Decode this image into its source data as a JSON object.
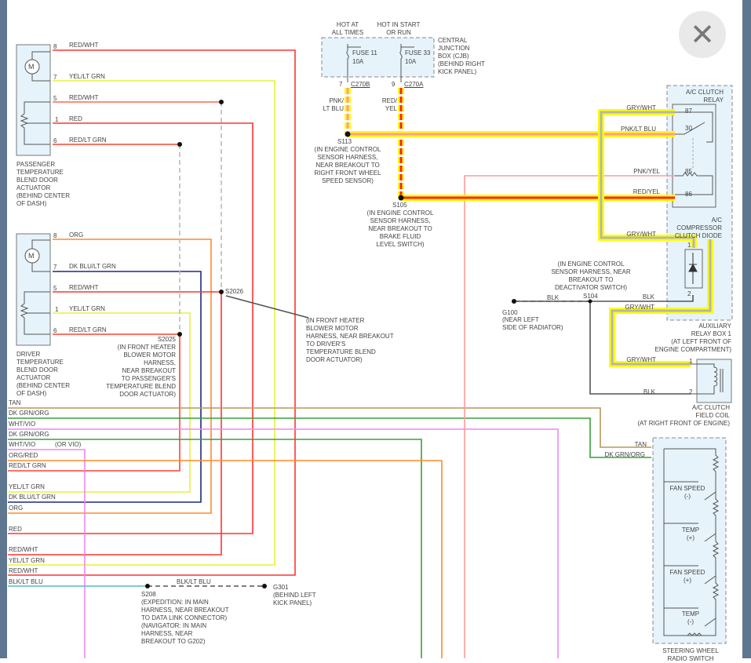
{
  "close_button": {
    "icon": "close-icon",
    "glyph": "✕"
  },
  "passenger_actuator": {
    "label": "PASSENGER\nTEMPERATURE\nBLEND DOOR\nACTUATOR\n(BEHIND CENTER\nOF DASH)",
    "pins": [
      {
        "pin": "8",
        "wire": "RED/WHT"
      },
      {
        "pin": "7",
        "wire": "YEL/LT GRN"
      },
      {
        "pin": "5",
        "wire": "RED/WHT"
      },
      {
        "pin": "1",
        "wire": "RED"
      },
      {
        "pin": "6",
        "wire": "RED/LT GRN"
      }
    ]
  },
  "driver_actuator": {
    "label": "DRIVER\nTEMPERATURE\nBLEND DOOR\nACTUATOR\n(BEHIND CENTER\nOF DASH)",
    "pins": [
      {
        "pin": "8",
        "wire": "ORG"
      },
      {
        "pin": "7",
        "wire": "DK BLU/LT GRN"
      },
      {
        "pin": "5",
        "wire": "RED/WHT"
      },
      {
        "pin": "1",
        "wire": "YEL/LT GRN"
      },
      {
        "pin": "6",
        "wire": "RED/LT GRN"
      }
    ]
  },
  "motor_symbol": "M",
  "splices": {
    "s2026": {
      "id": "S2026",
      "note": "(IN FRONT HEATER\nBLOWER MOTOR\nHARNESS, NEAR BREAKOUT\nTO DRIVER'S\nTEMPERATURE BLEND\nDOOR ACTUATOR)"
    },
    "s2025": {
      "id": "S2025",
      "note": "(IN FRONT HEATER\nBLOWER MOTOR\nHARNESS,\nNEAR BREAKOUT\nTO PASSENGER'S\nTEMPERATURE BLEND\nDOOR ACTUATOR)"
    },
    "s113": {
      "id": "S113",
      "note": "(IN ENGINE CONTROL\nSENSOR HARNESS,\nNEAR BREAKOUT TO\nRIGHT FRONT WHEEL\nSPEED SENSOR)"
    },
    "s105": {
      "id": "S105",
      "note": "(IN ENGINE CONTROL\nSENSOR HARNESS,\nNEAR BREAKOUT TO\nBRAKE FLUID\nLEVEL SWITCH)"
    },
    "s104": {
      "id": "S104",
      "note": "(IN ENGINE CONTROL\nSENSOR HARNESS, NEAR\nBREAKOUT TO\nDEACTIVATOR SWITCH)"
    },
    "s208": {
      "id": "S208",
      "note": "(EXPEDITION: IN MAIN\nHARNESS, NEAR BREAKOUT\nTO DATA LINK CONNECTOR)\n(NAVIGATOR: IN MAIN\nHARNESS, NEAR\nBREAKOUT TO G202)"
    }
  },
  "grounds": {
    "g100": {
      "id": "G100",
      "note": "(NEAR LEFT\nSIDE OF RADIATOR)"
    },
    "g301": {
      "id": "G301",
      "note": "(BEHIND LEFT\nKICK PANEL)"
    }
  },
  "cjb": {
    "label": "CENTRAL\nJUNCTION\nBOX (CJB)\n(BEHIND RIGHT\nKICK PANEL)",
    "hot_at_all_times": "HOT AT\nALL TIMES",
    "hot_in_start_or_run": "HOT IN START\nOR RUN",
    "fuse11": {
      "name": "FUSE 11",
      "rating": "10A",
      "connector_pin": "7",
      "connector": "C270B",
      "wire": "PNK/\nLT BLU"
    },
    "fuse33": {
      "name": "FUSE 33",
      "rating": "10A",
      "connector_pin": "9",
      "connector": "C270A",
      "wire": "RED/\nYEL"
    }
  },
  "relay": {
    "label": "A/C CLUTCH\nRELAY",
    "pins": [
      {
        "pin": "87",
        "wire": "GRY/WHT"
      },
      {
        "pin": "30",
        "wire": "PNK/LT BLU"
      },
      {
        "pin": "85",
        "wire": "PNK/YEL"
      },
      {
        "pin": "86",
        "wire": "RED/YEL"
      }
    ]
  },
  "diode": {
    "label": "A/C\nCOMPRESSOR\nCLUTCH DIODE",
    "pin1": "1",
    "pin2": "2",
    "wire_in": "GRY/WHT",
    "wire_out": "GRY/WHT",
    "wire_blk": "BLK"
  },
  "aux_relay_box": "AUXILIARY\nRELAY BOX 1\n(AT LEFT FRONT OF\nENGINE COMPARTMENT)",
  "ground_wire": "BLK",
  "field_coil": {
    "label": "A/C CLUTCH\nFIELD COIL\n(AT RIGHT FRONT OF ENGINE)",
    "pin1": "1",
    "pin2": "2",
    "wire1": "GRY/WHT",
    "wire2": "BLK"
  },
  "left_bus": [
    {
      "wire": "TAN",
      "color": "#b39a5a"
    },
    {
      "wire": "DK GRN/ORG",
      "color": "#3aa03a"
    },
    {
      "wire": "WHT/VIO",
      "color": "#ee88ee"
    },
    {
      "wire": "DK GRN/ORG",
      "color": "#3aa03a"
    },
    {
      "wire": "WHT/VIO",
      "color": "#ee88ee",
      "note": "(OR VIO)"
    },
    {
      "wire": "ORG/RED",
      "color": "#ff8a2a"
    },
    {
      "wire": "RED/LT GRN",
      "color": "#ff3333"
    },
    {
      "wire": "YEL/LT GRN",
      "color": "#eef23a"
    },
    {
      "wire": "DK BLU/LT GRN",
      "color": "#1a2a80"
    },
    {
      "wire": "ORG",
      "color": "#ff8a2a"
    },
    {
      "wire": "RED",
      "color": "#ff3333"
    },
    {
      "wire": "RED/WHT",
      "color": "#ff3333"
    },
    {
      "wire": "YEL/LT GRN",
      "color": "#eef23a"
    },
    {
      "wire": "RED/WHT",
      "color": "#ff3333"
    },
    {
      "wire": "BLK/LT BLU",
      "color": "#55bbbb"
    }
  ],
  "blk_lt_blu_dashed": "BLK/LT BLU",
  "steering_switch": {
    "label": "STEERING WHEEL\nRADIO SWITCH",
    "wire_tan": "TAN",
    "wire_dkgrn": "DK GRN/ORG",
    "switches": [
      {
        "name": "FAN SPEED",
        "sign": "(-)"
      },
      {
        "name": "TEMP",
        "sign": "(+)"
      },
      {
        "name": "FAN SPEED",
        "sign": "(+)"
      },
      {
        "name": "TEMP",
        "sign": "(-)"
      }
    ]
  },
  "colors": {
    "highlight": "#ffff00",
    "gray_wire": "#b5b5b5",
    "component_fill": "#e6f3fb"
  }
}
